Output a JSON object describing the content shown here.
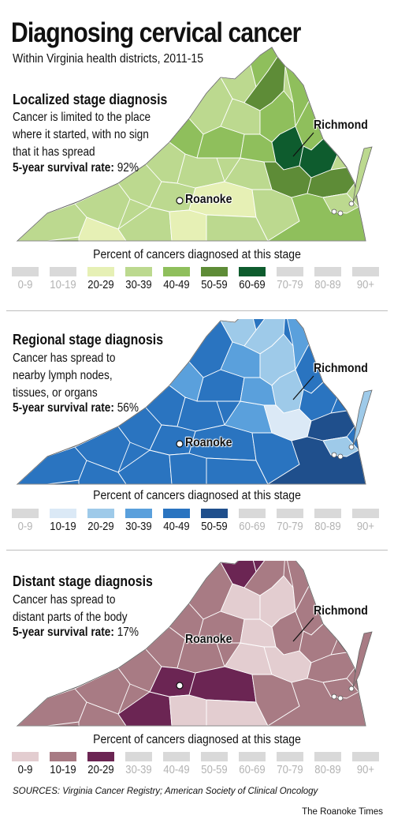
{
  "title": "Diagnosing cervical cancer",
  "subtitle": "Within Virginia health districts, 2011-15",
  "legend_title": "Percent of cancers diagnosed at this stage",
  "legend_labels": [
    "0-9",
    "10-19",
    "20-29",
    "30-39",
    "40-49",
    "50-59",
    "60-69",
    "70-79",
    "80-89",
    "90+"
  ],
  "inactive_color": "#d9d9d9",
  "cities": [
    "Richmond",
    "Roanoke"
  ],
  "maps": [
    {
      "heading": "Localized stage diagnosis",
      "description": [
        "Cancer is limited to the place",
        "where it started, with no sign",
        "that it has spread"
      ],
      "survival_label": "5-year survival rate:",
      "survival_value": "92%",
      "palette": [
        "#d9d9d9",
        "#d9d9d9",
        "#e6f0b5",
        "#bcd98f",
        "#8fbf5c",
        "#5e8c37",
        "#0e5c2e",
        "#d9d9d9",
        "#d9d9d9",
        "#d9d9d9"
      ],
      "active_bins": [
        2,
        3,
        4,
        5,
        6
      ],
      "dominant_bin": 3
    },
    {
      "heading": "Regional stage diagnosis",
      "description": [
        "Cancer has spread to",
        "nearby lymph nodes,",
        "tissues, or organs"
      ],
      "survival_label": "5-year survival rate:",
      "survival_value": "56%",
      "palette": [
        "#d9d9d9",
        "#dbe9f6",
        "#9ecae9",
        "#5aa0dc",
        "#2a74c0",
        "#1f4f8c",
        "#d9d9d9",
        "#d9d9d9",
        "#d9d9d9",
        "#d9d9d9"
      ],
      "active_bins": [
        1,
        2,
        3,
        4,
        5
      ],
      "dominant_bin": 4
    },
    {
      "heading": "Distant stage diagnosis",
      "description": [
        "Cancer has spread to",
        "distant parts of the body"
      ],
      "survival_label": "5-year survival rate:",
      "survival_value": "17%",
      "palette": [
        "#e3cdd0",
        "#a87b84",
        "#6b2553",
        "#d9d9d9",
        "#d9d9d9",
        "#d9d9d9",
        "#d9d9d9",
        "#d9d9d9",
        "#d9d9d9",
        "#d9d9d9"
      ],
      "active_bins": [
        0,
        1,
        2
      ],
      "dominant_bin": 1
    }
  ],
  "sources": "SOURCES: Virginia Cancer Registry; American Society of Clinical Oncology",
  "credit": "The Roanoke Times"
}
